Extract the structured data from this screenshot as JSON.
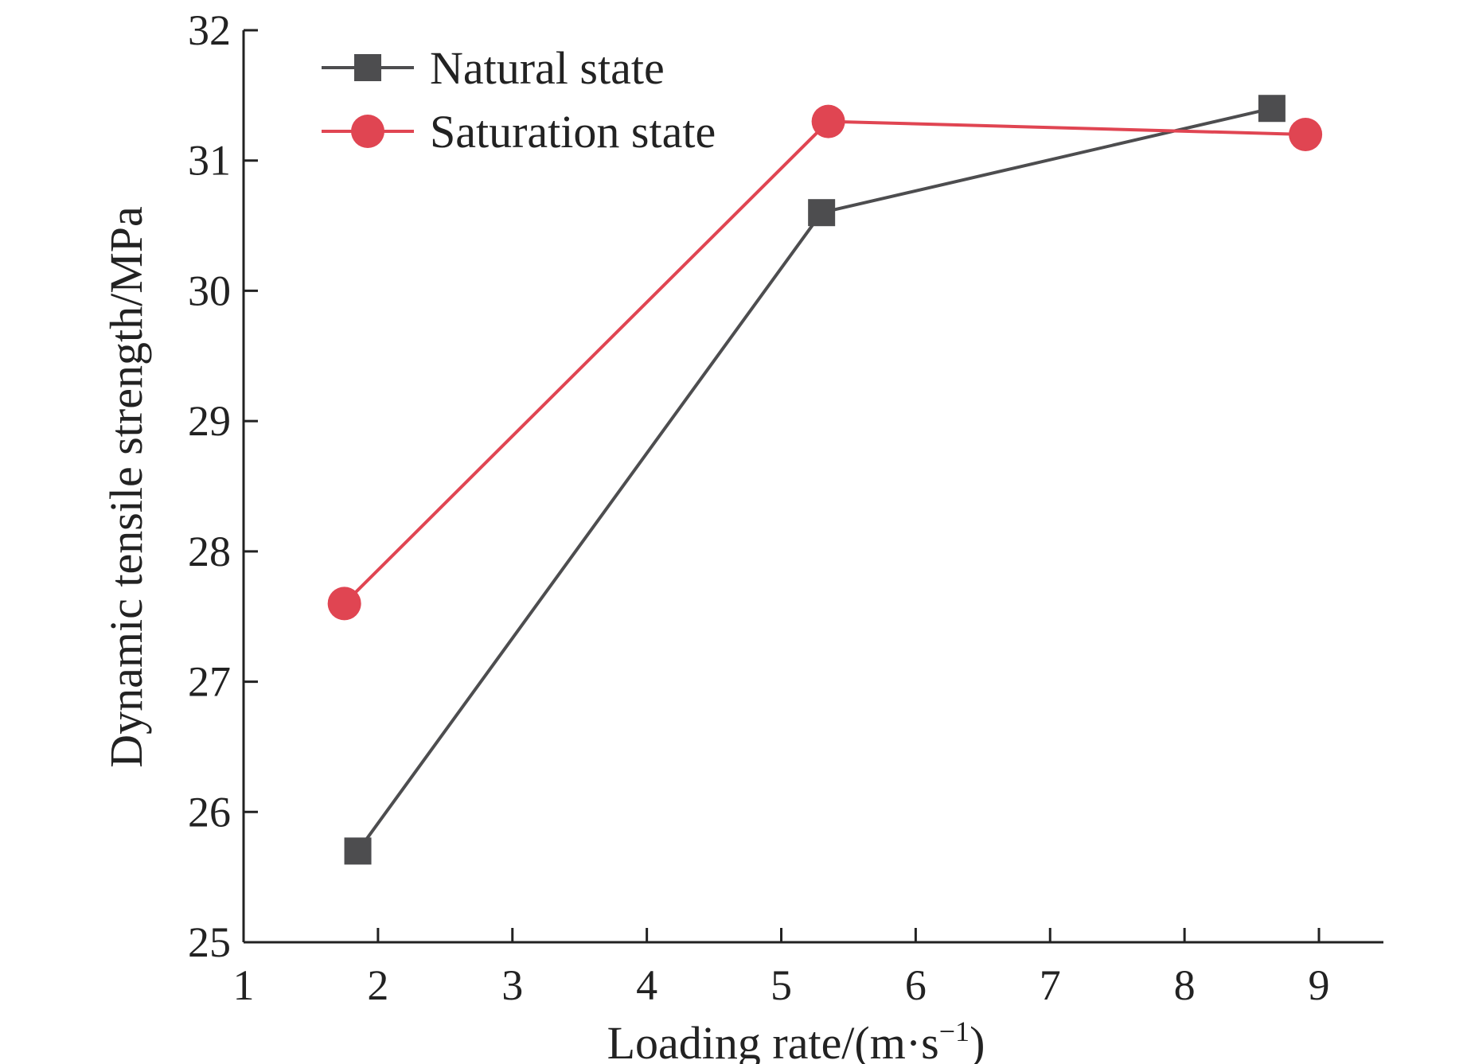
{
  "chart_data": {
    "type": "line",
    "title": "",
    "xlabel": "Loading rate/(m·s",
    "xlabel_sup": "−1",
    "xlabel_close": ")",
    "ylabel": "Dynamic tensile strength/MPa",
    "xlim": [
      1,
      9.5
    ],
    "ylim": [
      25,
      32
    ],
    "xticks": [
      "1",
      "2",
      "3",
      "4",
      "5",
      "6",
      "7",
      "8",
      "9"
    ],
    "yticks": [
      "25",
      "26",
      "27",
      "28",
      "29",
      "30",
      "31",
      "32"
    ],
    "grid": false,
    "legend_position": "top-left",
    "series": [
      {
        "name": "Natural state",
        "marker": "square",
        "color": "#4d4d4f",
        "points": [
          {
            "x": 1.85,
            "y": 25.7
          },
          {
            "x": 5.3,
            "y": 30.6
          },
          {
            "x": 8.65,
            "y": 31.4
          }
        ]
      },
      {
        "name": "Saturation state",
        "marker": "circle",
        "color": "#e04552",
        "points": [
          {
            "x": 1.75,
            "y": 27.6
          },
          {
            "x": 5.35,
            "y": 31.3
          },
          {
            "x": 8.9,
            "y": 31.2
          }
        ]
      }
    ]
  }
}
